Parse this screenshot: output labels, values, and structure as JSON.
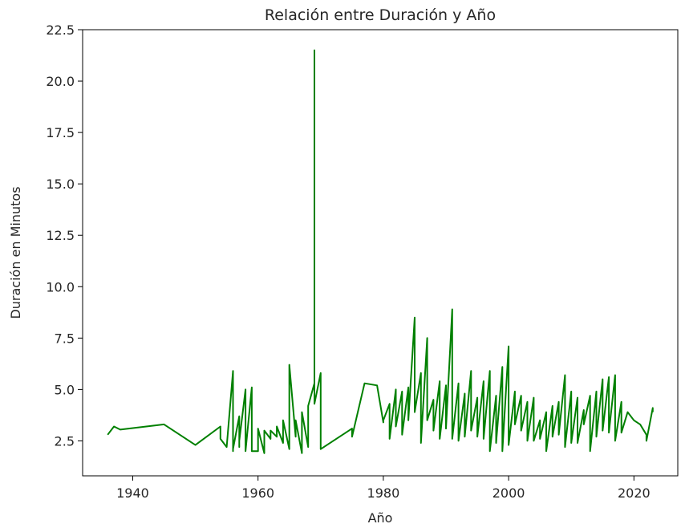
{
  "chart_data": {
    "type": "line",
    "title": "Relación entre Duración y Año",
    "xlabel": "Año",
    "ylabel": "Duración en Minutos",
    "xlim": [
      1932,
      2027
    ],
    "ylim": [
      0.8,
      22.5
    ],
    "xticks": [
      1940,
      1960,
      1980,
      2000,
      2020
    ],
    "yticks": [
      2.5,
      5.0,
      7.5,
      10.0,
      12.5,
      15.0,
      17.5,
      20.0,
      22.5
    ],
    "xtick_labels": [
      "1940",
      "1960",
      "1980",
      "2000",
      "2020"
    ],
    "ytick_labels": [
      "2.5",
      "5.0",
      "7.5",
      "10.0",
      "12.5",
      "15.0",
      "17.5",
      "20.0",
      "22.5"
    ],
    "grid": false,
    "series": [
      {
        "color": "#008000",
        "x": [
          1936,
          1937,
          1938,
          1945,
          1950,
          1954,
          1954,
          1955,
          1956,
          1956,
          1956,
          1956,
          1957,
          1957,
          1957,
          1958,
          1958,
          1959,
          1959,
          1960,
          1960,
          1961,
          1961,
          1962,
          1962,
          1963,
          1963,
          1964,
          1964,
          1965,
          1965,
          1966,
          1966,
          1967,
          1967,
          1968,
          1968,
          1969,
          1969,
          1969,
          1970,
          1970,
          1975,
          1975,
          1977,
          1979,
          1980,
          1980,
          1981,
          1981,
          1982,
          1982,
          1983,
          1983,
          1984,
          1984,
          1985,
          1985,
          1986,
          1986,
          1987,
          1987,
          1988,
          1988,
          1989,
          1989,
          1990,
          1990,
          1991,
          1991,
          1992,
          1992,
          1993,
          1993,
          1994,
          1994,
          1995,
          1995,
          1996,
          1996,
          1997,
          1997,
          1998,
          1998,
          1999,
          1999,
          2000,
          2000,
          2001,
          2001,
          2002,
          2002,
          2003,
          2003,
          2004,
          2004,
          2005,
          2005,
          2006,
          2006,
          2007,
          2007,
          2008,
          2008,
          2009,
          2009,
          2010,
          2010,
          2011,
          2011,
          2012,
          2012,
          2013,
          2013,
          2014,
          2014,
          2015,
          2015,
          2016,
          2016,
          2017,
          2017,
          2018,
          2018,
          2019,
          2020,
          2021,
          2022,
          2022,
          2023,
          2023
        ],
        "values": [
          2.8,
          3.2,
          3.05,
          3.3,
          2.3,
          3.2,
          2.6,
          2.2,
          5.9,
          2.0,
          5.8,
          2.1,
          3.7,
          2.2,
          2.5,
          5.0,
          2.0,
          5.1,
          2.0,
          2.0,
          3.1,
          1.9,
          3.0,
          2.6,
          3.0,
          2.7,
          3.2,
          2.4,
          3.5,
          2.1,
          6.2,
          2.7,
          3.5,
          1.9,
          3.9,
          2.2,
          4.2,
          5.3,
          21.5,
          4.3,
          5.8,
          2.1,
          3.1,
          2.7,
          5.3,
          5.2,
          3.4,
          3.5,
          4.3,
          2.6,
          5.0,
          3.2,
          4.9,
          2.8,
          5.1,
          3.5,
          8.5,
          3.9,
          5.8,
          2.4,
          7.5,
          3.5,
          4.5,
          3.0,
          5.4,
          2.6,
          5.2,
          3.1,
          8.9,
          2.6,
          5.3,
          2.5,
          4.8,
          2.7,
          5.9,
          3.0,
          4.6,
          2.7,
          5.4,
          2.6,
          5.9,
          2.0,
          4.7,
          2.4,
          6.1,
          2.0,
          7.1,
          2.3,
          4.9,
          3.3,
          4.7,
          3.0,
          4.4,
          2.5,
          4.6,
          2.5,
          3.5,
          2.6,
          3.9,
          2.0,
          4.2,
          2.7,
          4.4,
          2.8,
          5.7,
          2.2,
          4.9,
          2.4,
          4.6,
          2.4,
          4.0,
          3.3,
          4.7,
          2.0,
          4.9,
          2.7,
          5.5,
          3.0,
          5.6,
          2.9,
          5.7,
          2.5,
          4.4,
          2.9,
          3.9,
          3.5,
          3.3,
          2.8,
          2.5,
          4.1,
          3.9
        ]
      }
    ]
  }
}
